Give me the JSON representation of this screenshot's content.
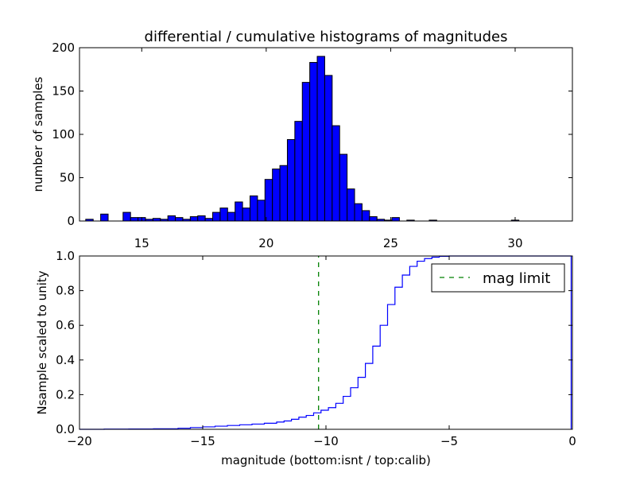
{
  "chart_data": [
    {
      "type": "bar",
      "title": "differential / cumulative histograms of magnitudes",
      "xlabel": "",
      "ylabel": "number of samples",
      "xlim": [
        12.5,
        32.3
      ],
      "ylim": [
        0,
        200
      ],
      "xticks": [
        15,
        20,
        25,
        30
      ],
      "yticks": [
        0,
        50,
        100,
        150,
        200
      ],
      "xtick_position": "top",
      "grid": false,
      "bar_color": "#0000ff",
      "bin_width": 0.3,
      "bins": [
        {
          "x": 12.9,
          "value": 2
        },
        {
          "x": 13.2,
          "value": 0
        },
        {
          "x": 13.5,
          "value": 8
        },
        {
          "x": 13.8,
          "value": 0
        },
        {
          "x": 14.1,
          "value": 0
        },
        {
          "x": 14.4,
          "value": 10
        },
        {
          "x": 14.7,
          "value": 4
        },
        {
          "x": 15.0,
          "value": 4
        },
        {
          "x": 15.3,
          "value": 2
        },
        {
          "x": 15.6,
          "value": 3
        },
        {
          "x": 15.9,
          "value": 2
        },
        {
          "x": 16.2,
          "value": 6
        },
        {
          "x": 16.5,
          "value": 4
        },
        {
          "x": 16.8,
          "value": 2
        },
        {
          "x": 17.1,
          "value": 5
        },
        {
          "x": 17.4,
          "value": 6
        },
        {
          "x": 17.7,
          "value": 3
        },
        {
          "x": 18.0,
          "value": 10
        },
        {
          "x": 18.3,
          "value": 15
        },
        {
          "x": 18.6,
          "value": 10
        },
        {
          "x": 18.9,
          "value": 22
        },
        {
          "x": 19.2,
          "value": 15
        },
        {
          "x": 19.5,
          "value": 29
        },
        {
          "x": 19.8,
          "value": 24
        },
        {
          "x": 20.1,
          "value": 48
        },
        {
          "x": 20.4,
          "value": 60
        },
        {
          "x": 20.7,
          "value": 64
        },
        {
          "x": 21.0,
          "value": 94
        },
        {
          "x": 21.3,
          "value": 115
        },
        {
          "x": 21.6,
          "value": 160
        },
        {
          "x": 21.9,
          "value": 183
        },
        {
          "x": 22.2,
          "value": 190
        },
        {
          "x": 22.5,
          "value": 168
        },
        {
          "x": 22.8,
          "value": 110
        },
        {
          "x": 23.1,
          "value": 77
        },
        {
          "x": 23.4,
          "value": 37
        },
        {
          "x": 23.7,
          "value": 20
        },
        {
          "x": 24.0,
          "value": 12
        },
        {
          "x": 24.3,
          "value": 5
        },
        {
          "x": 24.6,
          "value": 2
        },
        {
          "x": 24.9,
          "value": 1
        },
        {
          "x": 25.2,
          "value": 4
        },
        {
          "x": 25.5,
          "value": 0
        },
        {
          "x": 25.8,
          "value": 1
        },
        {
          "x": 26.1,
          "value": 0
        },
        {
          "x": 26.4,
          "value": 0
        },
        {
          "x": 26.7,
          "value": 1
        },
        {
          "x": 27.0,
          "value": 0
        },
        {
          "x": 27.3,
          "value": 0
        },
        {
          "x": 27.6,
          "value": 0
        },
        {
          "x": 27.9,
          "value": 0
        },
        {
          "x": 28.2,
          "value": 0
        },
        {
          "x": 28.5,
          "value": 0
        },
        {
          "x": 28.8,
          "value": 0
        },
        {
          "x": 29.1,
          "value": 0
        },
        {
          "x": 29.4,
          "value": 0
        },
        {
          "x": 29.7,
          "value": 0
        },
        {
          "x": 30.0,
          "value": 1
        },
        {
          "x": 30.3,
          "value": 0
        },
        {
          "x": 30.6,
          "value": 0
        },
        {
          "x": 30.9,
          "value": 0
        },
        {
          "x": 31.2,
          "value": 0
        },
        {
          "x": 31.5,
          "value": 0
        },
        {
          "x": 31.8,
          "value": 0
        }
      ]
    },
    {
      "type": "line",
      "title": "",
      "xlabel": "magnitude (bottom:isnt / top:calib)",
      "ylabel": "Nsample scaled to unity",
      "xlim": [
        -20,
        0
      ],
      "ylim": [
        0,
        1.0
      ],
      "xticks": [
        -20,
        -15,
        -10,
        -5,
        0
      ],
      "yticks": [
        0.0,
        0.2,
        0.4,
        0.6,
        0.8,
        1.0
      ],
      "grid": false,
      "legend_position": "top-right",
      "series": [
        {
          "name": "",
          "style": "step",
          "color": "#0000ff",
          "x": [
            -20.0,
            -19.0,
            -18.0,
            -17.0,
            -16.0,
            -15.5,
            -15.0,
            -14.5,
            -14.0,
            -13.5,
            -13.0,
            -12.5,
            -12.0,
            -11.7,
            -11.4,
            -11.1,
            -10.8,
            -10.5,
            -10.2,
            -9.9,
            -9.6,
            -9.3,
            -9.0,
            -8.7,
            -8.4,
            -8.1,
            -7.8,
            -7.5,
            -7.2,
            -6.9,
            -6.6,
            -6.3,
            -6.0,
            -5.7,
            -5.4,
            -5.0,
            -4.0,
            -0.05
          ],
          "y": [
            0.0,
            0.001,
            0.002,
            0.003,
            0.006,
            0.01,
            0.014,
            0.018,
            0.022,
            0.026,
            0.03,
            0.035,
            0.042,
            0.048,
            0.058,
            0.07,
            0.08,
            0.095,
            0.11,
            0.125,
            0.15,
            0.19,
            0.24,
            0.3,
            0.38,
            0.48,
            0.6,
            0.72,
            0.82,
            0.89,
            0.94,
            0.97,
            0.985,
            0.993,
            0.998,
            1.0,
            1.0,
            1.0
          ]
        },
        {
          "name": "mag limit",
          "style": "dashed-vertical",
          "color": "#008000",
          "x": [
            -10.3,
            -10.3
          ],
          "y": [
            0,
            1.0
          ]
        }
      ],
      "legend": [
        "mag limit"
      ]
    }
  ]
}
